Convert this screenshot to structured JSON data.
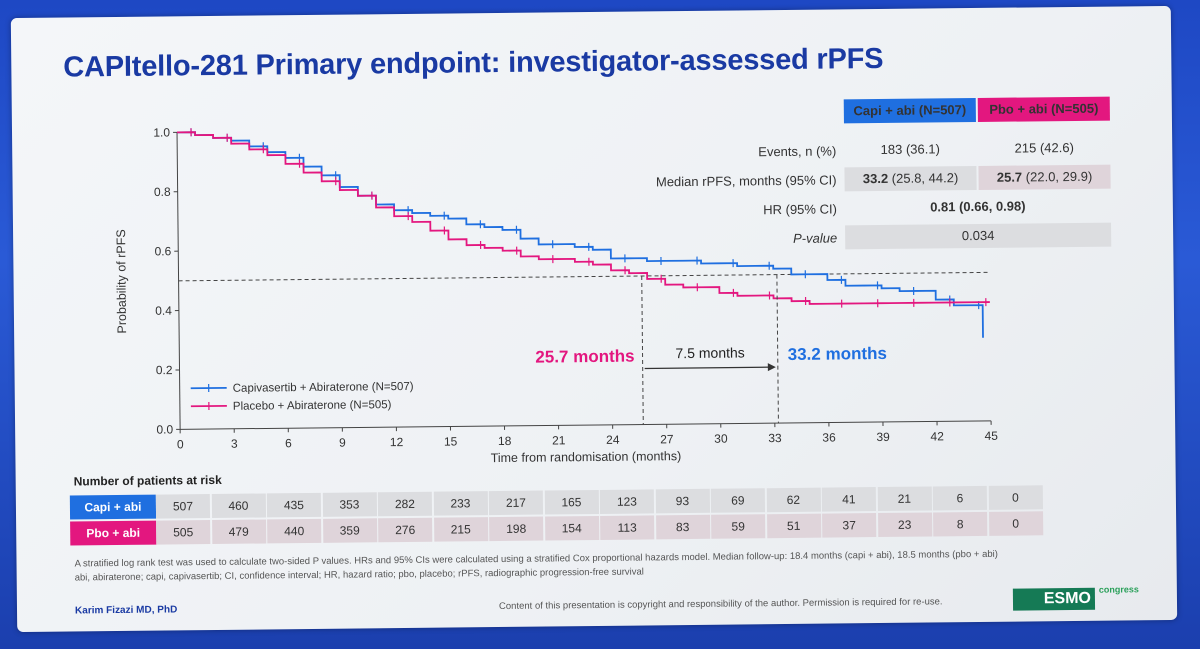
{
  "slide": {
    "title": "CAPItello-281 Primary endpoint: investigator-assessed rPFS",
    "author": "Karim Fizazi MD, PhD",
    "copyright": "Content of this presentation is copyright and responsibility of the author. Permission is required for re-use.",
    "footnote_1": "A stratified log rank test was used to calculate two-sided P values. HRs and 95% CIs were calculated using a stratified Cox proportional hazards model. Median follow-up: 18.4 months (capi + abi), 18.5 months (pbo + abi)",
    "footnote_2": "abi, abiraterone; capi, capivasertib; CI, confidence interval; HR, hazard ratio; pbo, placebo; rPFS, radiographic progression-free survival",
    "logo_text": "ESMO",
    "logo_sub": "congress"
  },
  "stats": {
    "col1": "Capi + abi (N=507)",
    "col2": "Pbo + abi (N=505)",
    "events_label": "Events, n (%)",
    "events_1": "183 (36.1)",
    "events_2": "215 (42.6)",
    "median_label": "Median rPFS, months (95% CI)",
    "median_1_bold": "33.2",
    "median_1_rest": " (25.8, 44.2)",
    "median_2_bold": "25.7",
    "median_2_rest": " (22.0, 29.9)",
    "hr_label": "HR (95% CI)",
    "hr_value": "0.81 (0.66, 0.98)",
    "p_label": "P-value",
    "p_value": "0.034"
  },
  "risk": {
    "title": "Number of patients at risk",
    "rows": [
      {
        "label": "Capi + abi",
        "values": [
          "507",
          "460",
          "435",
          "353",
          "282",
          "233",
          "217",
          "165",
          "123",
          "93",
          "69",
          "62",
          "41",
          "21",
          "6",
          "0"
        ]
      },
      {
        "label": "Pbo + abi",
        "values": [
          "505",
          "479",
          "440",
          "359",
          "276",
          "215",
          "198",
          "154",
          "113",
          "83",
          "59",
          "51",
          "37",
          "23",
          "8",
          "0"
        ]
      }
    ]
  },
  "colors": {
    "capi": "#1f6fe0",
    "pbo": "#e3177f",
    "title": "#1a3aa3"
  },
  "chart_data": {
    "type": "line",
    "xlabel": "Time from randomisation (months)",
    "ylabel": "Probability of rPFS",
    "xlim": [
      0,
      45
    ],
    "ylim": [
      0,
      1.0
    ],
    "xticks": [
      "0",
      "3",
      "6",
      "9",
      "12",
      "15",
      "18",
      "21",
      "24",
      "27",
      "30",
      "33",
      "36",
      "39",
      "42",
      "45"
    ],
    "yticks": [
      "0.0",
      "0.2",
      "0.4",
      "0.6",
      "0.8",
      "1.0"
    ],
    "median_ref": 0.5,
    "annotations": {
      "pbo_median": "25.7 months",
      "capi_median": "33.2 months",
      "diff": "7.5 months",
      "pbo_median_x": 25.7,
      "capi_median_x": 33.2
    },
    "series": [
      {
        "name": "Capivasertib + Abiraterone (N=507)",
        "x": [
          0,
          1,
          2,
          3,
          4,
          5,
          6,
          7,
          8,
          9,
          10,
          11,
          12,
          13,
          14,
          15,
          16,
          17,
          18,
          19,
          20,
          21,
          22,
          23,
          24,
          25,
          26,
          27,
          28,
          29,
          30,
          31,
          32,
          33,
          34,
          35,
          36,
          37,
          38,
          39,
          40,
          41,
          42,
          43,
          44,
          44.6
        ],
        "y": [
          1.0,
          0.99,
          0.98,
          0.97,
          0.95,
          0.93,
          0.91,
          0.88,
          0.85,
          0.81,
          0.78,
          0.75,
          0.73,
          0.72,
          0.71,
          0.7,
          0.68,
          0.67,
          0.66,
          0.63,
          0.61,
          0.61,
          0.6,
          0.59,
          0.56,
          0.56,
          0.55,
          0.55,
          0.55,
          0.54,
          0.54,
          0.53,
          0.53,
          0.52,
          0.5,
          0.5,
          0.48,
          0.46,
          0.46,
          0.45,
          0.44,
          0.44,
          0.41,
          0.39,
          0.39,
          0.28
        ]
      },
      {
        "name": "Placebo + Abiraterone (N=505)",
        "x": [
          0,
          1,
          2,
          3,
          4,
          5,
          6,
          7,
          8,
          9,
          10,
          11,
          12,
          13,
          14,
          15,
          16,
          17,
          18,
          19,
          20,
          21,
          22,
          23,
          24,
          25,
          26,
          27,
          28,
          29,
          30,
          31,
          32,
          33,
          34,
          35,
          36,
          37,
          38,
          39,
          40,
          41,
          42,
          43,
          44,
          45
        ],
        "y": [
          1.0,
          0.99,
          0.98,
          0.96,
          0.94,
          0.92,
          0.89,
          0.86,
          0.83,
          0.8,
          0.78,
          0.74,
          0.71,
          0.69,
          0.66,
          0.63,
          0.61,
          0.6,
          0.59,
          0.57,
          0.56,
          0.56,
          0.55,
          0.54,
          0.52,
          0.51,
          0.49,
          0.47,
          0.46,
          0.46,
          0.44,
          0.43,
          0.43,
          0.42,
          0.41,
          0.4,
          0.4,
          0.4,
          0.4,
          0.4,
          0.4,
          0.4,
          0.4,
          0.4,
          0.4,
          0.4
        ]
      }
    ]
  }
}
